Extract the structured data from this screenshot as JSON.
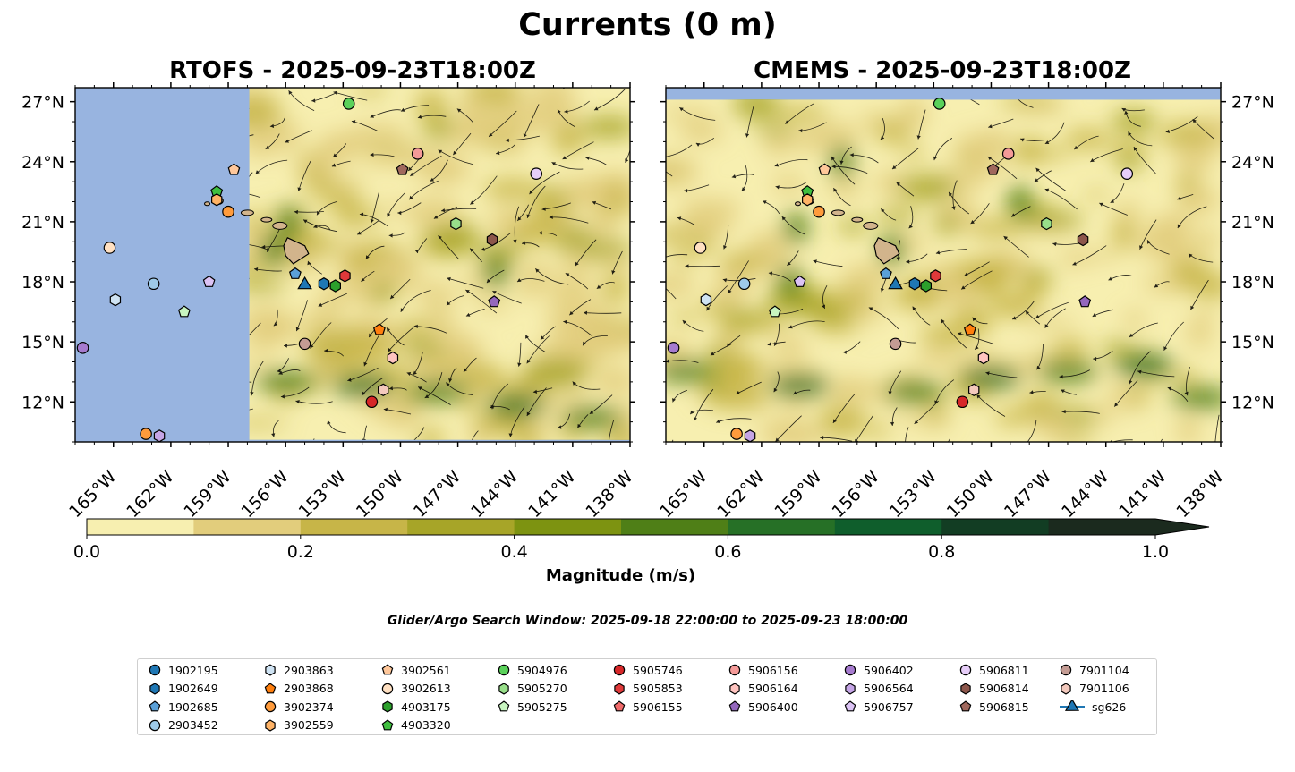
{
  "title": "Currents (0 m)",
  "colors": {
    "land": "#d2b48c",
    "no_data": "#98b4e0",
    "colorbar": [
      "#f7efb0",
      "#e2cd7c",
      "#c7b548",
      "#a7a528",
      "#7d9311",
      "#4f7f17",
      "#267026",
      "#0f5e2c",
      "#123d23",
      "#1b2a1e"
    ]
  },
  "colorbar": {
    "label": "Magnitude (m/s)",
    "range": [
      0.0,
      1.0
    ],
    "step": 0.1,
    "ticks": [
      "0.0",
      "0.2",
      "0.4",
      "0.6",
      "0.8",
      "1.0"
    ],
    "extend": "max"
  },
  "window_note": "Glider/Argo Search Window: 2025-09-18 22:00:00 to 2025-09-23 18:00:00",
  "chart_data": [
    {
      "type": "map",
      "title": "RTOFS - 2025-09-23T18:00Z",
      "lon_range": [
        -167,
        -138
      ],
      "lat_range": [
        10,
        27.7
      ],
      "lon_ticks": [
        -165,
        -162,
        -159,
        -156,
        -153,
        -150,
        -147,
        -144,
        -141,
        -138
      ],
      "lon_tick_labels": [
        "165°W",
        "162°W",
        "159°W",
        "156°W",
        "153°W",
        "150°W",
        "147°W",
        "144°W",
        "141°W",
        "138°W"
      ],
      "lat_ticks": [
        12,
        15,
        18,
        21,
        24,
        27
      ],
      "lat_tick_labels": [
        "12°N",
        "15°N",
        "18°N",
        "21°N",
        "24°N",
        "27°N"
      ],
      "lat_labels_side": "left",
      "data_lon_min": -157.9,
      "data_lat_min": 10.1,
      "markers": [
        {
          "id": "5904976",
          "lon": -152.7,
          "lat": 26.9
        },
        {
          "id": "3902561",
          "lon": -158.7,
          "lat": 23.6
        },
        {
          "id": "5906815",
          "lon": -149.9,
          "lat": 23.6
        },
        {
          "id": "5906156",
          "lon": -149.1,
          "lat": 24.4
        },
        {
          "id": "5906811",
          "lon": -142.9,
          "lat": 23.4
        },
        {
          "id": "4903320",
          "lon": -159.6,
          "lat": 22.5
        },
        {
          "id": "3902559",
          "lon": -159.6,
          "lat": 22.1
        },
        {
          "id": "3902374",
          "lon": -159.0,
          "lat": 21.5
        },
        {
          "id": "5905270",
          "lon": -147.1,
          "lat": 20.9
        },
        {
          "id": "5906814",
          "lon": -145.2,
          "lat": 20.1
        },
        {
          "id": "3902613",
          "lon": -165.2,
          "lat": 19.7
        },
        {
          "id": "1902685",
          "lon": -155.5,
          "lat": 18.4
        },
        {
          "id": "1902649",
          "lon": -154.0,
          "lat": 17.9
        },
        {
          "id": "4903175",
          "lon": -153.4,
          "lat": 17.8
        },
        {
          "id": "5905853",
          "lon": -152.9,
          "lat": 18.3
        },
        {
          "id": "5906757",
          "lon": -160.0,
          "lat": 18.0
        },
        {
          "id": "2903452",
          "lon": -162.9,
          "lat": 17.9
        },
        {
          "id": "2903863",
          "lon": -164.9,
          "lat": 17.1
        },
        {
          "id": "5905275",
          "lon": -161.3,
          "lat": 16.5
        },
        {
          "id": "5906400",
          "lon": -145.1,
          "lat": 17.0
        },
        {
          "id": "2903868",
          "lon": -151.1,
          "lat": 15.6
        },
        {
          "id": "7901104",
          "lon": -155.0,
          "lat": 14.9
        },
        {
          "id": "5906402",
          "lon": -166.6,
          "lat": 14.7
        },
        {
          "id": "5906164",
          "lon": -150.4,
          "lat": 14.2
        },
        {
          "id": "7901106",
          "lon": -150.9,
          "lat": 12.6
        },
        {
          "id": "5905746",
          "lon": -151.5,
          "lat": 12.0
        },
        {
          "id": "3902374",
          "lon": -163.3,
          "lat": 10.4
        },
        {
          "id": "5906564",
          "lon": -162.6,
          "lat": 10.3
        },
        {
          "id": "sg626",
          "lon": -155.0,
          "lat": 17.9
        }
      ]
    },
    {
      "type": "map",
      "title": "CMEMS - 2025-09-23T18:00Z",
      "lon_range": [
        -167,
        -138
      ],
      "lat_range": [
        10,
        27.7
      ],
      "lon_ticks": [
        -165,
        -162,
        -159,
        -156,
        -153,
        -150,
        -147,
        -144,
        -141,
        -138
      ],
      "lon_tick_labels": [
        "165°W",
        "162°W",
        "159°W",
        "156°W",
        "153°W",
        "150°W",
        "147°W",
        "144°W",
        "141°W",
        "138°W"
      ],
      "lat_ticks": [
        12,
        15,
        18,
        21,
        24,
        27
      ],
      "lat_tick_labels": [
        "12°N",
        "15°N",
        "18°N",
        "21°N",
        "24°N",
        "27°N"
      ],
      "lat_labels_side": "right",
      "data_lon_min": -167,
      "data_lat_min": 10,
      "data_lat_max": 27.1,
      "markers": [
        {
          "id": "5904976",
          "lon": -152.7,
          "lat": 26.9
        },
        {
          "id": "3902561",
          "lon": -158.7,
          "lat": 23.6
        },
        {
          "id": "5906815",
          "lon": -149.9,
          "lat": 23.6
        },
        {
          "id": "5906156",
          "lon": -149.1,
          "lat": 24.4
        },
        {
          "id": "5906811",
          "lon": -142.9,
          "lat": 23.4
        },
        {
          "id": "4903320",
          "lon": -159.6,
          "lat": 22.5
        },
        {
          "id": "3902559",
          "lon": -159.6,
          "lat": 22.1
        },
        {
          "id": "3902374",
          "lon": -159.0,
          "lat": 21.5
        },
        {
          "id": "5905270",
          "lon": -147.1,
          "lat": 20.9
        },
        {
          "id": "5906814",
          "lon": -145.2,
          "lat": 20.1
        },
        {
          "id": "3902613",
          "lon": -165.2,
          "lat": 19.7
        },
        {
          "id": "1902685",
          "lon": -155.5,
          "lat": 18.4
        },
        {
          "id": "1902649",
          "lon": -154.0,
          "lat": 17.9
        },
        {
          "id": "4903175",
          "lon": -153.4,
          "lat": 17.8
        },
        {
          "id": "5905853",
          "lon": -152.9,
          "lat": 18.3
        },
        {
          "id": "5906757",
          "lon": -160.0,
          "lat": 18.0
        },
        {
          "id": "2903452",
          "lon": -162.9,
          "lat": 17.9
        },
        {
          "id": "2903863",
          "lon": -164.9,
          "lat": 17.1
        },
        {
          "id": "5905275",
          "lon": -161.3,
          "lat": 16.5
        },
        {
          "id": "5906400",
          "lon": -145.1,
          "lat": 17.0
        },
        {
          "id": "2903868",
          "lon": -151.1,
          "lat": 15.6
        },
        {
          "id": "7901104",
          "lon": -155.0,
          "lat": 14.9
        },
        {
          "id": "5906402",
          "lon": -166.6,
          "lat": 14.7
        },
        {
          "id": "5906164",
          "lon": -150.4,
          "lat": 14.2
        },
        {
          "id": "7901106",
          "lon": -150.9,
          "lat": 12.6
        },
        {
          "id": "5905746",
          "lon": -151.5,
          "lat": 12.0
        },
        {
          "id": "3902374",
          "lon": -163.3,
          "lat": 10.4
        },
        {
          "id": "5906564",
          "lon": -162.6,
          "lat": 10.3
        },
        {
          "id": "sg626",
          "lon": -155.0,
          "lat": 17.9
        }
      ]
    }
  ],
  "legend": {
    "columns": [
      [
        {
          "id": "1902195",
          "label": "1902195",
          "shape": "circle",
          "color": "#1f77b4"
        },
        {
          "id": "1902649",
          "label": "1902649",
          "shape": "hexagon",
          "color": "#1f77b4"
        },
        {
          "id": "1902685",
          "label": "1902685",
          "shape": "pentagon",
          "color": "#5aa0d8"
        },
        {
          "id": "2903452",
          "label": "2903452",
          "shape": "circle",
          "color": "#9ecae9"
        }
      ],
      [
        {
          "id": "2903863",
          "label": "2903863",
          "shape": "hexagon",
          "color": "#cfe3f3"
        },
        {
          "id": "2903868",
          "label": "2903868",
          "shape": "pentagon",
          "color": "#ff7f0e"
        },
        {
          "id": "3902374",
          "label": "3902374",
          "shape": "circle",
          "color": "#ff9b3c"
        },
        {
          "id": "3902559",
          "label": "3902559",
          "shape": "hexagon",
          "color": "#ffb366"
        }
      ],
      [
        {
          "id": "3902561",
          "label": "3902561",
          "shape": "pentagon",
          "color": "#ffc79a"
        },
        {
          "id": "3902613",
          "label": "3902613",
          "shape": "circle",
          "color": "#ffe0c2"
        },
        {
          "id": "4903175",
          "label": "4903175",
          "shape": "hexagon",
          "color": "#2ca02c"
        },
        {
          "id": "4903320",
          "label": "4903320",
          "shape": "pentagon",
          "color": "#3fbf3f"
        }
      ],
      [
        {
          "id": "5904976",
          "label": "5904976",
          "shape": "circle",
          "color": "#5ad15a"
        },
        {
          "id": "5905270",
          "label": "5905270",
          "shape": "hexagon",
          "color": "#98df8a"
        },
        {
          "id": "5905275",
          "label": "5905275",
          "shape": "pentagon",
          "color": "#c8f5c0"
        }
      ],
      [
        {
          "id": "5905746",
          "label": "5905746",
          "shape": "circle",
          "color": "#d62728"
        },
        {
          "id": "5905853",
          "label": "5905853",
          "shape": "hexagon",
          "color": "#e0393a"
        },
        {
          "id": "5906155",
          "label": "5906155",
          "shape": "pentagon",
          "color": "#f06a6a"
        }
      ],
      [
        {
          "id": "5906156",
          "label": "5906156",
          "shape": "circle",
          "color": "#f49a98"
        },
        {
          "id": "5906164",
          "label": "5906164",
          "shape": "hexagon",
          "color": "#ffc4c0"
        },
        {
          "id": "5906400",
          "label": "5906400",
          "shape": "pentagon",
          "color": "#9467bd"
        }
      ],
      [
        {
          "id": "5906402",
          "label": "5906402",
          "shape": "circle",
          "color": "#a67bcf"
        },
        {
          "id": "5906564",
          "label": "5906564",
          "shape": "hexagon",
          "color": "#c5a5e6"
        },
        {
          "id": "5906757",
          "label": "5906757",
          "shape": "pentagon",
          "color": "#dcc3f5"
        }
      ],
      [
        {
          "id": "5906811",
          "label": "5906811",
          "shape": "circle",
          "color": "#e6cdf8"
        },
        {
          "id": "5906814",
          "label": "5906814",
          "shape": "hexagon",
          "color": "#8c564b"
        },
        {
          "id": "5906815",
          "label": "5906815",
          "shape": "pentagon",
          "color": "#a0685d"
        }
      ],
      [
        {
          "id": "7901104",
          "label": "7901104",
          "shape": "circle",
          "color": "#c49c94"
        },
        {
          "id": "7901106",
          "label": "7901106",
          "shape": "hexagon",
          "color": "#f3c9bd"
        },
        {
          "id": "sg626",
          "label": "sg626",
          "shape": "triangle-line",
          "color": "#1f77b4"
        }
      ]
    ]
  }
}
